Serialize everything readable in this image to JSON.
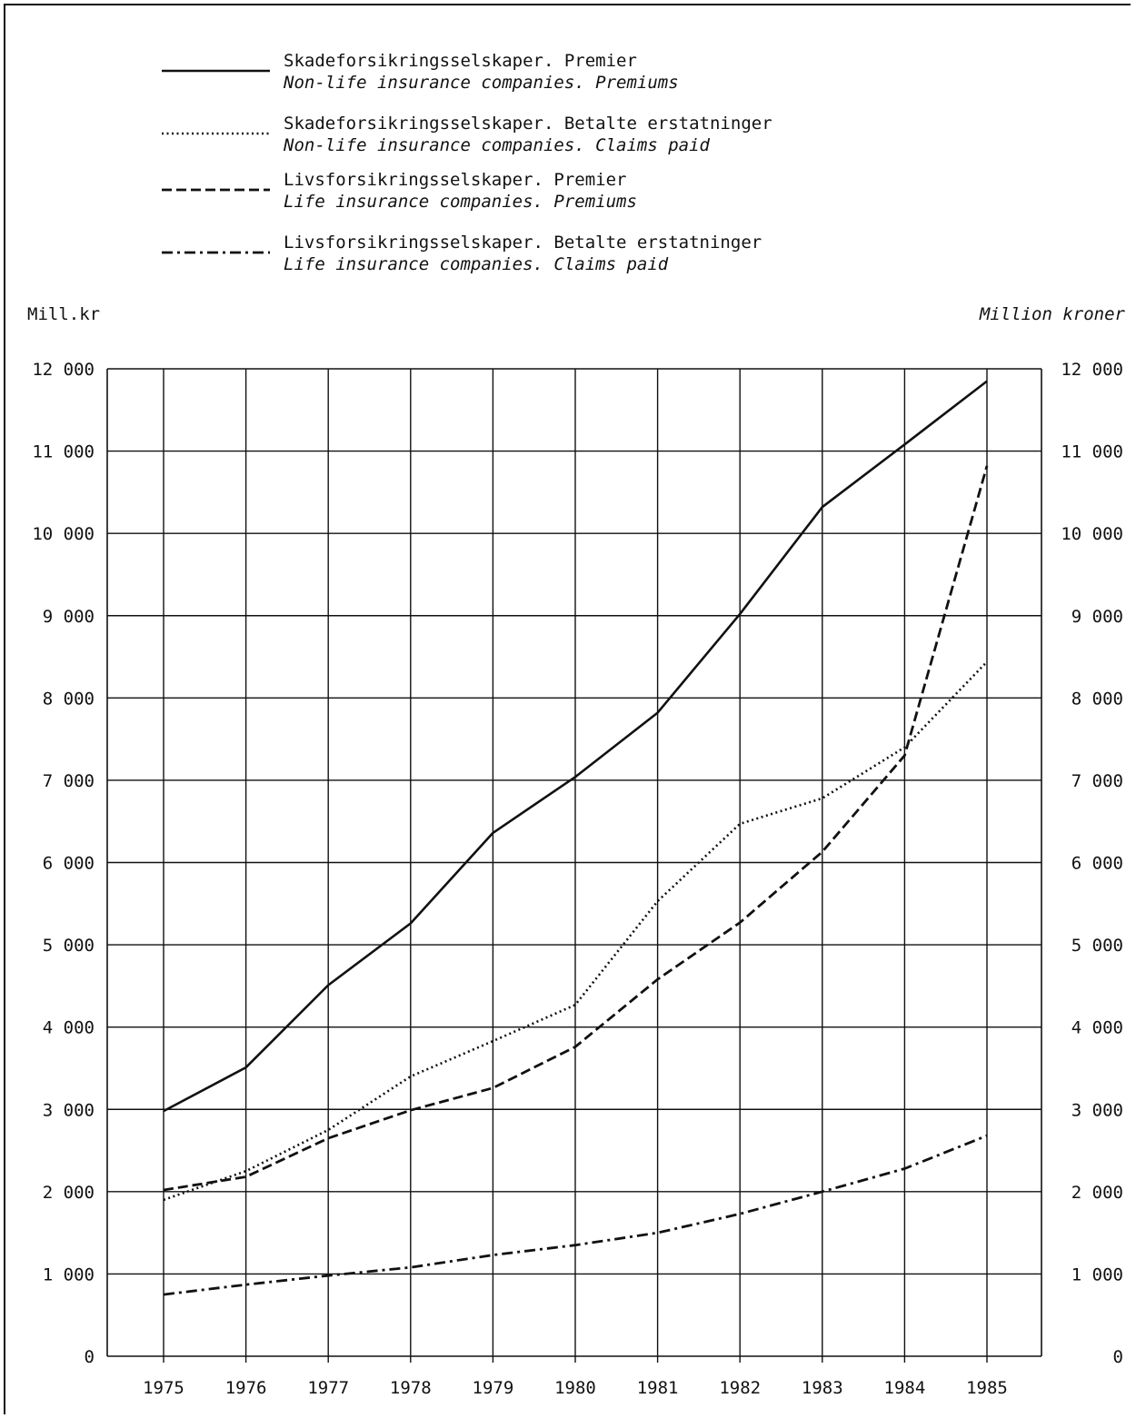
{
  "chart_data": {
    "type": "line",
    "legend": [
      {
        "series": 0,
        "line1": "Skadeforsikringsselskaper. Premier",
        "line2": "Non-life insurance companies. Premiums",
        "style": "solid"
      },
      {
        "series": 1,
        "line1": "Skadeforsikringsselskaper. Betalte erstatninger",
        "line2": "Non-life insurance companies. Claims paid",
        "style": "dotted"
      },
      {
        "series": 2,
        "line1": "Livsforsikringsselskaper. Premier",
        "line2": "Life insurance companies. Premiums",
        "style": "dashed"
      },
      {
        "series": 3,
        "line1": "Livsforsikringsselskaper. Betalte erstatninger",
        "line2": "Life insurance companies. Claims paid",
        "style": "dashdot"
      }
    ],
    "legend_position": "top",
    "ylabel_left": "Mill.kr",
    "ylabel_right": "Million kroner",
    "x": [
      "1975",
      "1976",
      "1977",
      "1978",
      "1979",
      "1980",
      "1981",
      "1982",
      "1983",
      "1984",
      "1985"
    ],
    "ylim": [
      0,
      12000
    ],
    "yticks": [
      0,
      1000,
      2000,
      3000,
      4000,
      5000,
      6000,
      7000,
      8000,
      9000,
      10000,
      11000,
      12000
    ],
    "ytick_labels": [
      "0",
      "1 000",
      "2 000",
      "3 000",
      "4 000",
      "5 000",
      "6 000",
      "7 000",
      "8 000",
      "9 000",
      "10 000",
      "11 000",
      "12 000"
    ],
    "grid": true,
    "series": [
      {
        "values": [
          2980,
          3510,
          4510,
          5260,
          6360,
          7040,
          7820,
          9020,
          10320,
          11080,
          11850
        ]
      },
      {
        "values": [
          1900,
          2250,
          2750,
          3400,
          3830,
          4270,
          5530,
          6470,
          6780,
          7400,
          8440
        ]
      },
      {
        "values": [
          2020,
          2180,
          2650,
          2990,
          3260,
          3760,
          4580,
          5270,
          6130,
          7300,
          10820
        ]
      },
      {
        "values": [
          750,
          870,
          980,
          1080,
          1230,
          1350,
          1500,
          1730,
          2000,
          2280,
          2680
        ]
      }
    ]
  }
}
